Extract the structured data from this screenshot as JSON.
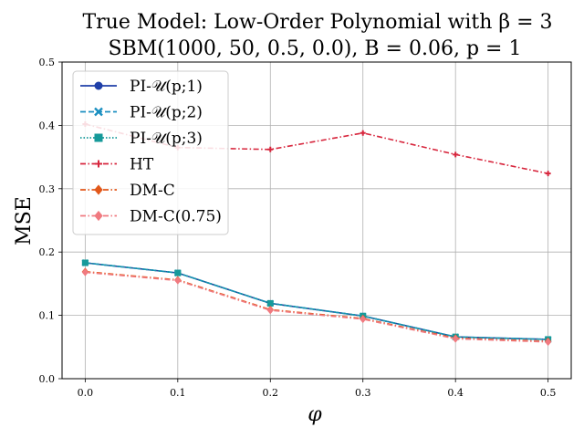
{
  "chart_data": {
    "type": "line",
    "title_line1": "True Model: Low-Order Polynomial with β = 3",
    "title_line2": "SBM(1000, 50, 0.5, 0.0), B = 0.06, p = 1",
    "xlabel": "φ",
    "ylabel": "MSE",
    "x": [
      0.0,
      0.1,
      0.2,
      0.3,
      0.4,
      0.5
    ],
    "xticks": [
      "0.0",
      "0.1",
      "0.2",
      "0.3",
      "0.4",
      "0.5"
    ],
    "yticks": [
      "0.0",
      "0.1",
      "0.2",
      "0.3",
      "0.4",
      "0.5"
    ],
    "xlim": [
      -0.025,
      0.525
    ],
    "ylim": [
      0.0,
      0.5
    ],
    "grid": true,
    "legend_position": "upper-left",
    "series": [
      {
        "name": "PI-𝒰(p;1)",
        "color": "#1f3fa8",
        "marker": "circle",
        "dash": "solid",
        "values": [
          0.183,
          0.167,
          0.119,
          0.099,
          0.066,
          0.062
        ]
      },
      {
        "name": "PI-𝒰(p;2)",
        "color": "#1a8fc0",
        "marker": "x",
        "dash": "dashed",
        "values": [
          0.183,
          0.167,
          0.119,
          0.099,
          0.066,
          0.062
        ]
      },
      {
        "name": "PI-𝒰(p;3)",
        "color": "#169a9a",
        "marker": "square",
        "dash": "dotted",
        "values": [
          0.183,
          0.167,
          0.119,
          0.099,
          0.066,
          0.062
        ]
      },
      {
        "name": "HT",
        "color": "#d7263d",
        "marker": "plus",
        "dash": "dashdot",
        "values": [
          0.402,
          0.365,
          0.362,
          0.388,
          0.354,
          0.324
        ]
      },
      {
        "name": "DM-C",
        "color": "#e2581a",
        "marker": "diamond",
        "dash": "dashdot",
        "values": [
          0.169,
          0.156,
          0.109,
          0.095,
          0.064,
          0.059
        ]
      },
      {
        "name": "DM-C(0.75)",
        "color": "#f07a80",
        "marker": "diamond",
        "dash": "dashdot",
        "values": [
          0.168,
          0.155,
          0.108,
          0.094,
          0.063,
          0.058
        ]
      }
    ]
  }
}
